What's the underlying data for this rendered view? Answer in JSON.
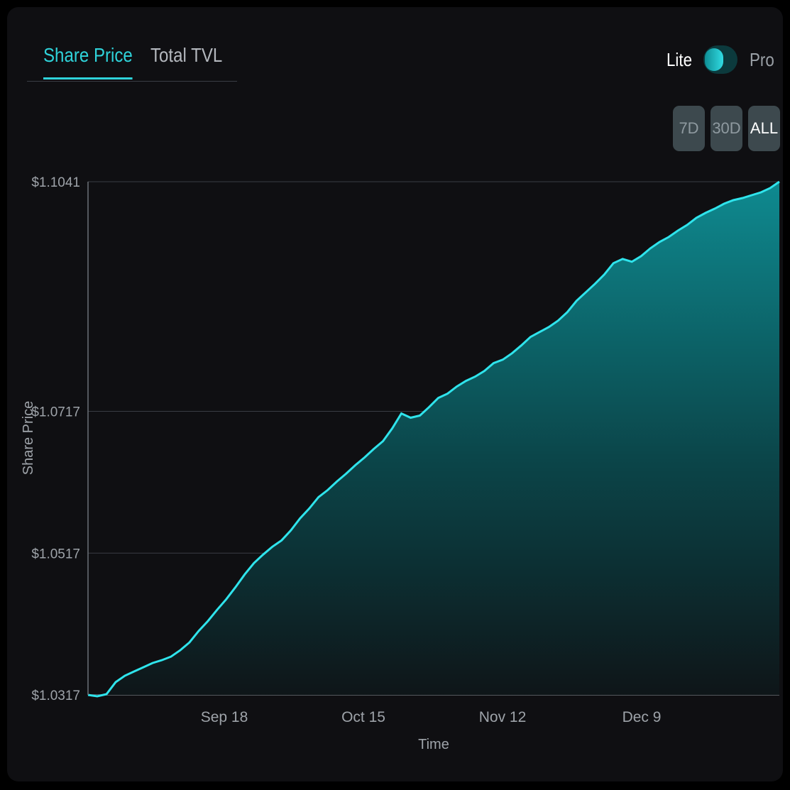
{
  "tabs": [
    {
      "label": "Share Price",
      "active": true
    },
    {
      "label": "Total TVL",
      "active": false
    }
  ],
  "mode_toggle": {
    "left_label": "Lite",
    "right_label": "Pro",
    "selected": "Lite"
  },
  "range_buttons": [
    {
      "label": "7D",
      "active": false
    },
    {
      "label": "30D",
      "active": false
    },
    {
      "label": "ALL",
      "active": true
    }
  ],
  "colors": {
    "accent": "#2fd3da",
    "background": "#0f0f12",
    "button_bg": "#3d494e",
    "grid": "#3a3d44"
  },
  "chart_data": {
    "type": "area",
    "xlabel": "Time",
    "ylabel": "Share Price",
    "ylim": [
      1.0317,
      1.1041
    ],
    "y_ticks": [
      "$1.0317",
      "$1.0517",
      "$1.0717",
      "$1.1041"
    ],
    "x_ticks": [
      "Sep 18",
      "Oct 15",
      "Nov 12",
      "Dec 9"
    ],
    "grid": "horizontal",
    "series": [
      {
        "x_label_index_note": "",
        "values": [
          1.0317,
          1.0315,
          1.0318,
          1.0335,
          1.0344,
          1.035,
          1.0356,
          1.0362,
          1.0366,
          1.0371,
          1.038,
          1.0391,
          1.0407,
          1.0421,
          1.0437,
          1.0452,
          1.0469,
          1.0487,
          1.0503,
          1.0515,
          1.0526,
          1.0535,
          1.0549,
          1.0566,
          1.058,
          1.0596,
          1.0606,
          1.0618,
          1.0629,
          1.0641,
          1.0652,
          1.0664,
          1.0675,
          1.0693,
          1.0714,
          1.0708,
          1.0711,
          1.0723,
          1.0736,
          1.0742,
          1.0752,
          1.076,
          1.0766,
          1.0774,
          1.0785,
          1.079,
          1.0799,
          1.081,
          1.0822,
          1.0829,
          1.0836,
          1.0845,
          1.0857,
          1.0873,
          1.0885,
          1.0897,
          1.091,
          1.0926,
          1.0932,
          1.0928,
          1.0936,
          1.0947,
          1.0956,
          1.0963,
          1.0972,
          1.098,
          1.099,
          1.0997,
          1.1003,
          1.101,
          1.1015,
          1.1018,
          1.1022,
          1.1026,
          1.1032,
          1.1041
        ]
      }
    ]
  }
}
